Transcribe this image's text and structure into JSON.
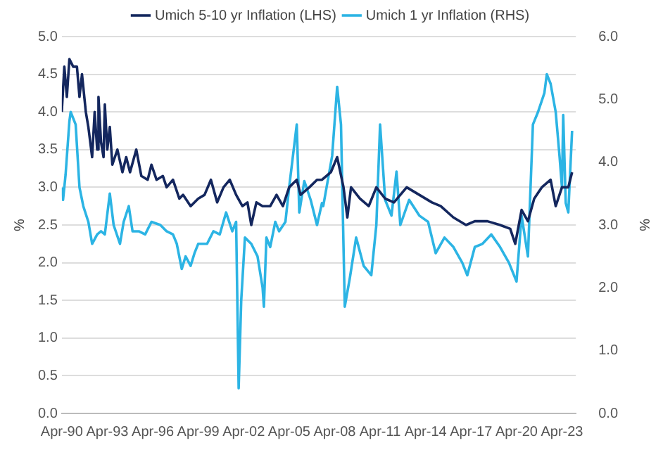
{
  "chart_data": {
    "type": "line",
    "ylabel": "%",
    "y2label": "%",
    "legend": "top",
    "grid": "y",
    "marker": "none",
    "line_style": "solid",
    "xlim": [
      "1990-04",
      "2024-03"
    ],
    "xticks": [
      {
        "value": "1990-04",
        "label": "Apr-90"
      },
      {
        "value": "1993-04",
        "label": "Apr-93"
      },
      {
        "value": "1996-04",
        "label": "Apr-96"
      },
      {
        "value": "1999-04",
        "label": "Apr-99"
      },
      {
        "value": "2002-04",
        "label": "Apr-02"
      },
      {
        "value": "2005-04",
        "label": "Apr-05"
      },
      {
        "value": "2008-04",
        "label": "Apr-08"
      },
      {
        "value": "2011-04",
        "label": "Apr-11"
      },
      {
        "value": "2014-04",
        "label": "Apr-14"
      },
      {
        "value": "2017-04",
        "label": "Apr-17"
      },
      {
        "value": "2020-04",
        "label": "Apr-20"
      },
      {
        "value": "2023-04",
        "label": "Apr-23"
      }
    ],
    "ylim": [
      0,
      5
    ],
    "yticks": [
      {
        "value": 0,
        "label": "0.0"
      },
      {
        "value": 0.5,
        "label": "0.5"
      },
      {
        "value": 1,
        "label": "1.0"
      },
      {
        "value": 1.5,
        "label": "1.5"
      },
      {
        "value": 2,
        "label": "2.0"
      },
      {
        "value": 2.5,
        "label": "2.5"
      },
      {
        "value": 3,
        "label": "3.0"
      },
      {
        "value": 3.5,
        "label": "3.5"
      },
      {
        "value": 4,
        "label": "4.0"
      },
      {
        "value": 4.5,
        "label": "4.5"
      },
      {
        "value": 5,
        "label": "5.0"
      }
    ],
    "y2lim": [
      0,
      6
    ],
    "y2ticks": [
      {
        "value": 0,
        "label": "0.0"
      },
      {
        "value": 1,
        "label": "1.0"
      },
      {
        "value": 2,
        "label": "2.0"
      },
      {
        "value": 3,
        "label": "3.0"
      },
      {
        "value": 4,
        "label": "4.0"
      },
      {
        "value": 5,
        "label": "5.0"
      },
      {
        "value": 6,
        "label": "6.0"
      }
    ],
    "series": [
      {
        "name": "Umich 5-10 yr Inflation (LHS)",
        "color": "#14275e",
        "x": [
          "1990-04",
          "1990-06",
          "1990-08",
          "1990-10",
          "1991-01",
          "1991-04",
          "1991-06",
          "1991-08",
          "1991-11",
          "1992-01",
          "1992-04",
          "1992-06",
          "1992-08",
          "1992-09",
          "1992-11",
          "1993-01",
          "1993-02",
          "1993-04",
          "1993-06",
          "1993-08",
          "1993-12",
          "1994-04",
          "1994-07",
          "1994-10",
          "1995-03",
          "1995-07",
          "1995-12",
          "1996-03",
          "1996-07",
          "1996-12",
          "1997-03",
          "1997-08",
          "1998-01",
          "1998-04",
          "1998-10",
          "1999-04",
          "1999-09",
          "2000-02",
          "2000-07",
          "2000-12",
          "2001-05",
          "2001-10",
          "2002-03",
          "2002-07",
          "2002-10",
          "2003-02",
          "2003-07",
          "2004-01",
          "2004-06",
          "2004-11",
          "2005-04",
          "2005-10",
          "2006-01",
          "2006-08",
          "2007-02",
          "2007-06",
          "2008-01",
          "2008-06",
          "2008-11",
          "2009-02",
          "2009-05",
          "2009-12",
          "2010-07",
          "2011-01",
          "2011-08",
          "2012-03",
          "2013-01",
          "2013-11",
          "2014-09",
          "2015-04",
          "2016-02",
          "2016-12",
          "2017-07",
          "2018-05",
          "2019-03",
          "2019-11",
          "2020-03",
          "2020-08",
          "2021-01",
          "2021-06",
          "2021-12",
          "2022-07",
          "2022-11",
          "2023-04",
          "2023-09",
          "2023-12"
        ],
        "values": [
          4.0,
          4.6,
          4.2,
          4.7,
          4.6,
          4.6,
          4.2,
          4.5,
          4.0,
          3.8,
          3.4,
          4.0,
          3.5,
          4.2,
          3.6,
          3.4,
          4.1,
          3.5,
          3.8,
          3.3,
          3.5,
          3.2,
          3.4,
          3.2,
          3.5,
          3.15,
          3.1,
          3.3,
          3.1,
          3.15,
          3.0,
          3.1,
          2.85,
          2.9,
          2.75,
          2.85,
          2.9,
          3.1,
          2.8,
          3.0,
          3.1,
          2.9,
          2.75,
          2.8,
          2.5,
          2.8,
          2.75,
          2.75,
          2.9,
          2.75,
          3.0,
          3.1,
          2.9,
          3.0,
          3.1,
          3.1,
          3.2,
          3.4,
          3.0,
          2.6,
          3.0,
          2.85,
          2.75,
          3.0,
          2.85,
          2.8,
          3.0,
          2.9,
          2.8,
          2.75,
          2.6,
          2.5,
          2.55,
          2.55,
          2.5,
          2.45,
          2.25,
          2.7,
          2.55,
          2.85,
          3.0,
          3.1,
          2.75,
          3.0,
          3.0,
          3.2
        ]
      },
      {
        "name": "Umich 1 yr Inflation (RHS)",
        "color": "#2cb4e4",
        "axis": "y2",
        "x": [
          "1990-04",
          "1990-05",
          "1990-07",
          "1990-10",
          "1990-11",
          "1991-03",
          "1991-06",
          "1991-09",
          "1992-01",
          "1992-04",
          "1992-08",
          "1992-11",
          "1993-02",
          "1993-06",
          "1993-09",
          "1994-02",
          "1994-05",
          "1994-09",
          "1994-12",
          "1995-05",
          "1995-10",
          "1996-03",
          "1996-10",
          "1997-03",
          "1997-08",
          "1997-11",
          "1998-03",
          "1998-06",
          "1998-10",
          "1999-01",
          "1999-04",
          "1999-11",
          "2000-04",
          "2000-09",
          "2001-02",
          "2001-07",
          "2001-10",
          "2001-12",
          "2002-02",
          "2002-05",
          "2002-10",
          "2003-03",
          "2003-07",
          "2003-08",
          "2003-10",
          "2004-01",
          "2004-05",
          "2004-08",
          "2005-01",
          "2005-04",
          "2005-10",
          "2005-12",
          "2006-04",
          "2006-09",
          "2007-02",
          "2007-06",
          "2007-07",
          "2008-02",
          "2008-06",
          "2008-09",
          "2008-12",
          "2009-04",
          "2009-09",
          "2010-03",
          "2010-09",
          "2011-01",
          "2011-04",
          "2011-08",
          "2012-01",
          "2012-05",
          "2012-08",
          "2013-03",
          "2013-11",
          "2014-06",
          "2014-12",
          "2015-07",
          "2016-02",
          "2016-09",
          "2017-01",
          "2017-07",
          "2018-01",
          "2018-08",
          "2019-03",
          "2019-10",
          "2020-04",
          "2020-08",
          "2021-01",
          "2021-05",
          "2021-09",
          "2022-02",
          "2022-04",
          "2022-07",
          "2022-11",
          "2023-02",
          "2023-04",
          "2023-05",
          "2023-07",
          "2023-09",
          "2023-12"
        ],
        "values": [
          3.6,
          3.4,
          3.8,
          4.65,
          4.8,
          4.6,
          3.6,
          3.3,
          3.05,
          2.7,
          2.85,
          2.9,
          2.85,
          3.5,
          3.0,
          2.7,
          3.05,
          3.3,
          2.9,
          2.9,
          2.85,
          3.05,
          3.0,
          2.9,
          2.85,
          2.7,
          2.3,
          2.5,
          2.35,
          2.55,
          2.7,
          2.7,
          2.9,
          2.85,
          3.2,
          2.9,
          3.05,
          0.4,
          1.8,
          2.8,
          2.7,
          2.5,
          2.0,
          1.7,
          2.8,
          2.65,
          3.05,
          2.9,
          3.05,
          3.6,
          4.6,
          3.2,
          3.7,
          3.4,
          3.0,
          3.35,
          3.3,
          4.1,
          5.2,
          4.6,
          1.7,
          2.15,
          2.8,
          2.35,
          2.2,
          3.0,
          4.6,
          3.4,
          3.15,
          3.85,
          3.0,
          3.4,
          3.15,
          3.05,
          2.55,
          2.8,
          2.65,
          2.4,
          2.2,
          2.65,
          2.7,
          2.85,
          2.65,
          2.4,
          2.1,
          3.15,
          2.5,
          4.6,
          4.8,
          5.1,
          5.4,
          5.25,
          4.8,
          4.1,
          3.6,
          4.75,
          3.35,
          3.2,
          4.5
        ]
      }
    ]
  }
}
